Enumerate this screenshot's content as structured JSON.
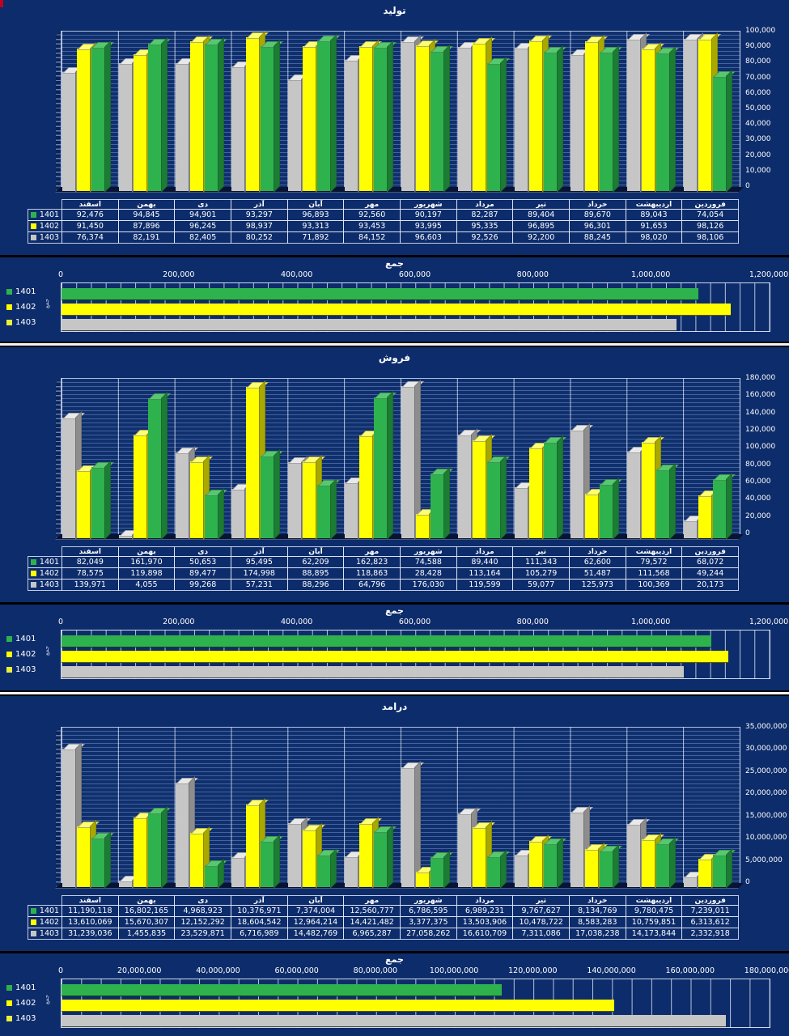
{
  "colors": {
    "background": "#0d2c6b",
    "wall": "#0f2f6d",
    "floor": "#081433",
    "grid_line": "#7a96d2",
    "table_border": "#e0e7f7",
    "text": "#ffffff",
    "divider_white": "#f2f2f2",
    "corner_mark_red": "#c00020"
  },
  "year_colors": {
    "1401": {
      "front": "#2eb24d",
      "top": "#56c96f",
      "side": "#1b7c33"
    },
    "1402": {
      "front": "#ffff00",
      "top": "#ffff73",
      "side": "#a8a800"
    },
    "1403": {
      "front": "#c6c6c6",
      "top": "#e9e9e9",
      "side": "#8d8d8d"
    }
  },
  "sum_legend_colors": [
    "#2eb24d",
    "#ffff00",
    "#e9ef3d"
  ],
  "months": [
    "اسفند",
    "بهمن",
    "دی",
    "آذر",
    "آبان",
    "مهر",
    "شهریور",
    "مرداد",
    "تیر",
    "خرداد",
    "اردیبهشت",
    "فروردین"
  ],
  "years": [
    "1401",
    "1402",
    "1403"
  ],
  "chart_data": [
    {
      "type": "bar",
      "variant": "column-3d",
      "title": "تولید",
      "legend_position": "table-left",
      "value_axis_side": "right",
      "grid": true,
      "ylim": [
        0,
        100000
      ],
      "ytick_step": 10000,
      "categories": [
        "اسفند",
        "بهمن",
        "دی",
        "آذر",
        "آبان",
        "مهر",
        "شهریور",
        "مرداد",
        "تیر",
        "خرداد",
        "اردیبهشت",
        "فروردین"
      ],
      "series": [
        {
          "name": "1401",
          "values": [
            92476,
            94845,
            94901,
            93297,
            96893,
            92560,
            90197,
            82287,
            89404,
            89670,
            89043,
            74054
          ]
        },
        {
          "name": "1402",
          "values": [
            91450,
            87896,
            96245,
            98937,
            93313,
            93453,
            93995,
            95335,
            96895,
            96301,
            91653,
            98126
          ]
        },
        {
          "name": "1403",
          "values": [
            76374,
            82191,
            82405,
            80252,
            71892,
            84152,
            96603,
            92526,
            92200,
            88245,
            98020,
            98106
          ]
        }
      ]
    },
    {
      "type": "bar",
      "variant": "horizontal-sum",
      "title": "جمع",
      "category_label": "جمع",
      "categories": [
        "جمع"
      ],
      "xlim": [
        0,
        1200000
      ],
      "xtick_step": 200000,
      "xminor_step": 25000,
      "series": [
        {
          "name": "1401",
          "values": [
            1079627
          ]
        },
        {
          "name": "1402",
          "values": [
            1133599
          ]
        },
        {
          "name": "1403",
          "values": [
            1042966
          ]
        }
      ]
    },
    {
      "type": "bar",
      "variant": "column-3d",
      "title": "فروش",
      "legend_position": "table-left",
      "value_axis_side": "right",
      "grid": true,
      "ylim": [
        0,
        180000
      ],
      "ytick_step": 20000,
      "categories": [
        "اسفند",
        "بهمن",
        "دی",
        "آذر",
        "آبان",
        "مهر",
        "شهریور",
        "مرداد",
        "تیر",
        "خرداد",
        "اردیبهشت",
        "فروردین"
      ],
      "series": [
        {
          "name": "1401",
          "values": [
            82049,
            161970,
            50653,
            95495,
            62209,
            162823,
            74588,
            89440,
            111343,
            62600,
            79572,
            68072
          ]
        },
        {
          "name": "1402",
          "values": [
            78575,
            119898,
            89477,
            174998,
            88895,
            118863,
            28428,
            113164,
            105279,
            51487,
            111568,
            49244
          ]
        },
        {
          "name": "1403",
          "values": [
            139971,
            4055,
            99268,
            57231,
            88296,
            64796,
            176030,
            119599,
            59077,
            125973,
            100369,
            20173
          ]
        }
      ]
    },
    {
      "type": "bar",
      "variant": "horizontal-sum",
      "title": "جمع",
      "category_label": "جمع",
      "categories": [
        "جمع"
      ],
      "xlim": [
        0,
        1200000
      ],
      "xtick_step": 200000,
      "xminor_step": 25000,
      "series": [
        {
          "name": "1401",
          "values": [
            1100814
          ]
        },
        {
          "name": "1402",
          "values": [
            1129876
          ]
        },
        {
          "name": "1403",
          "values": [
            1054838
          ]
        }
      ]
    },
    {
      "type": "bar",
      "variant": "column-3d",
      "title": "درامد",
      "legend_position": "table-left",
      "value_axis_side": "right",
      "grid": true,
      "ylim": [
        0,
        35000000
      ],
      "ytick_step": 5000000,
      "categories": [
        "اسفند",
        "بهمن",
        "دی",
        "آذر",
        "آبان",
        "مهر",
        "شهریور",
        "مرداد",
        "تیر",
        "خرداد",
        "اردیبهشت",
        "فروردین"
      ],
      "series": [
        {
          "name": "1401",
          "values": [
            11190118,
            16802165,
            4968923,
            10376971,
            7374004,
            12560777,
            6786595,
            6989231,
            9767627,
            8134769,
            9780475,
            7239011
          ]
        },
        {
          "name": "1402",
          "values": [
            13610069,
            15670307,
            12152292,
            18604542,
            12964214,
            14421482,
            3377375,
            13503906,
            10478722,
            8583283,
            10759851,
            6313612
          ]
        },
        {
          "name": "1403",
          "values": [
            31239036,
            1455835,
            23529871,
            6716989,
            14482769,
            6965287,
            27058262,
            16610709,
            7311086,
            17038238,
            14173844,
            2332918
          ]
        }
      ]
    },
    {
      "type": "bar",
      "variant": "horizontal-sum",
      "title": "جمع",
      "category_label": "جمع",
      "categories": [
        "جمع"
      ],
      "xlim": [
        0,
        180000000
      ],
      "xtick_step": 20000000,
      "xminor_step": 5000000,
      "series": [
        {
          "name": "1401",
          "values": [
            111970666
          ]
        },
        {
          "name": "1402",
          "values": [
            140439655
          ]
        },
        {
          "name": "1403",
          "values": [
            168914844
          ]
        }
      ]
    }
  ]
}
